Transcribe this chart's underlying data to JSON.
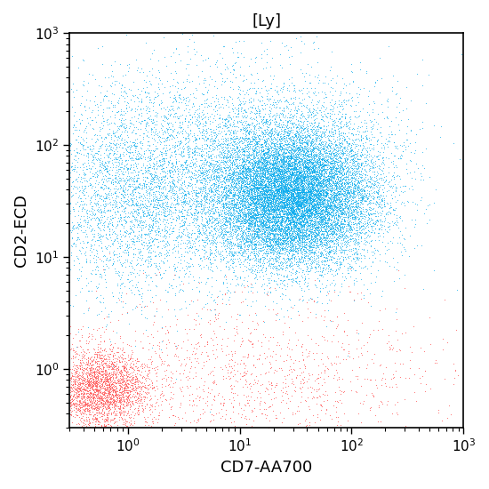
{
  "title": "[Ly]",
  "xlabel": "CD7-AA700",
  "ylabel": "CD2-ECD",
  "xlim": [
    0.3,
    1000
  ],
  "ylim": [
    0.3,
    1000
  ],
  "background_color": "#ffffff",
  "cyan_color": "#00AAEE",
  "red_color": "#FF5555",
  "cyan_main": {
    "n": 18000,
    "x_log_mean": 1.45,
    "x_log_std": 0.38,
    "y_log_mean": 1.55,
    "y_log_std": 0.32
  },
  "cyan_left_tail": {
    "n": 4000,
    "x_log_mean": 0.1,
    "x_log_std": 0.45,
    "y_log_mean": 1.55,
    "y_log_std": 0.45
  },
  "cyan_sparse": {
    "n": 1500,
    "x_log_mean": 1.0,
    "x_log_std": 0.8,
    "y_log_mean": 2.2,
    "y_log_std": 0.35
  },
  "red_cluster": {
    "n": 3000,
    "x_log_mean": -0.25,
    "x_log_std": 0.22,
    "y_log_mean": -0.18,
    "y_log_std": 0.18
  },
  "red_right_scatter": {
    "n": 800,
    "x_log_mean": 1.5,
    "x_log_std": 0.65,
    "y_log_mean": -0.1,
    "y_log_std": 0.35
  },
  "red_mid_scatter": {
    "n": 600,
    "x_log_mean": 0.5,
    "x_log_std": 0.6,
    "y_log_mean": -0.05,
    "y_log_std": 0.4
  }
}
